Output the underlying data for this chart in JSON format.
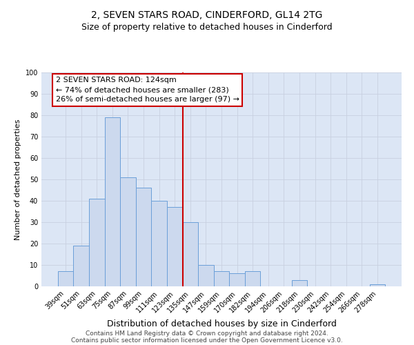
{
  "title": "2, SEVEN STARS ROAD, CINDERFORD, GL14 2TG",
  "subtitle": "Size of property relative to detached houses in Cinderford",
  "xlabel": "Distribution of detached houses by size in Cinderford",
  "ylabel": "Number of detached properties",
  "bar_labels": [
    "39sqm",
    "51sqm",
    "63sqm",
    "75sqm",
    "87sqm",
    "99sqm",
    "111sqm",
    "123sqm",
    "135sqm",
    "147sqm",
    "159sqm",
    "170sqm",
    "182sqm",
    "194sqm",
    "206sqm",
    "218sqm",
    "230sqm",
    "242sqm",
    "254sqm",
    "266sqm",
    "278sqm"
  ],
  "bar_heights": [
    7,
    19,
    41,
    79,
    51,
    46,
    40,
    37,
    30,
    10,
    7,
    6,
    7,
    0,
    0,
    3,
    0,
    0,
    0,
    0,
    1
  ],
  "bar_color": "#ccd9ee",
  "bar_edge_color": "#6a9fd8",
  "vline_x_index": 7,
  "vline_color": "#cc0000",
  "annotation_title": "2 SEVEN STARS ROAD: 124sqm",
  "annotation_line1": "← 74% of detached houses are smaller (283)",
  "annotation_line2": "26% of semi-detached houses are larger (97) →",
  "annotation_box_color": "#ffffff",
  "annotation_border_color": "#cc0000",
  "ylim": [
    0,
    100
  ],
  "yticks": [
    0,
    10,
    20,
    30,
    40,
    50,
    60,
    70,
    80,
    90,
    100
  ],
  "grid_color": "#c8d0e0",
  "background_color": "#dce6f5",
  "footer1": "Contains HM Land Registry data © Crown copyright and database right 2024.",
  "footer2": "Contains public sector information licensed under the Open Government Licence v3.0.",
  "title_fontsize": 10,
  "subtitle_fontsize": 9,
  "xlabel_fontsize": 9,
  "ylabel_fontsize": 8,
  "tick_fontsize": 7,
  "annotation_title_fontsize": 8.5,
  "annotation_text_fontsize": 8,
  "footer_fontsize": 6.5
}
